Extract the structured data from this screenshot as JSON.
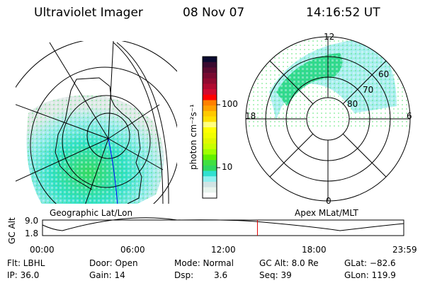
{
  "header": {
    "instrument": "Ultraviolet Imager",
    "date": "08 Nov 07",
    "time": "14:16:52 UT"
  },
  "colorbar": {
    "unit_label": "photon cm⁻²s⁻¹",
    "tick_100": "100",
    "tick_10": "10",
    "colors": [
      "#0a0a30",
      "#3a0a30",
      "#5a0a30",
      "#780a30",
      "#900a30",
      "#b00a30",
      "#d00a30",
      "#ff0000",
      "#ff8000",
      "#ffa000",
      "#ffc800",
      "#ffe000",
      "#ffff80",
      "#ffff00",
      "#f0ff00",
      "#e0f800",
      "#c8ff00",
      "#a0ff00",
      "#60f000",
      "#40e040",
      "#30d860",
      "#30e0d0",
      "#90f0f0",
      "#d0e4e4",
      "#e8f4ee",
      "#ffffff"
    ]
  },
  "left_map": {
    "caption": "Geographic Lat/Lon"
  },
  "right_map": {
    "caption": "Apex MLat/MLT",
    "mlt_labels": {
      "top": "12",
      "left": "18",
      "right": "6",
      "bottom": "0"
    },
    "lat_labels": [
      "60",
      "70",
      "80"
    ]
  },
  "altitude_plot": {
    "ylabel": "GC Alt",
    "yticks": [
      "9.0",
      "1.8"
    ],
    "xticks": [
      "00:00",
      "06:00",
      "12:00",
      "18:00",
      "23:59"
    ],
    "current_time_marker_hours": 14.28
  },
  "status": {
    "flt": "Flt: LBHL",
    "ip": "IP: 36.0",
    "door": "Door: Open",
    "gain": "Gain: 14",
    "mode": "Mode: Normal",
    "dsp_label": "Dsp:",
    "dsp_value": "3.6",
    "gc_alt": "GC Alt: 8.0 Re",
    "seq": "Seq: 39",
    "glat": "GLat: −82.6",
    "glon": "GLon: 119.9"
  }
}
